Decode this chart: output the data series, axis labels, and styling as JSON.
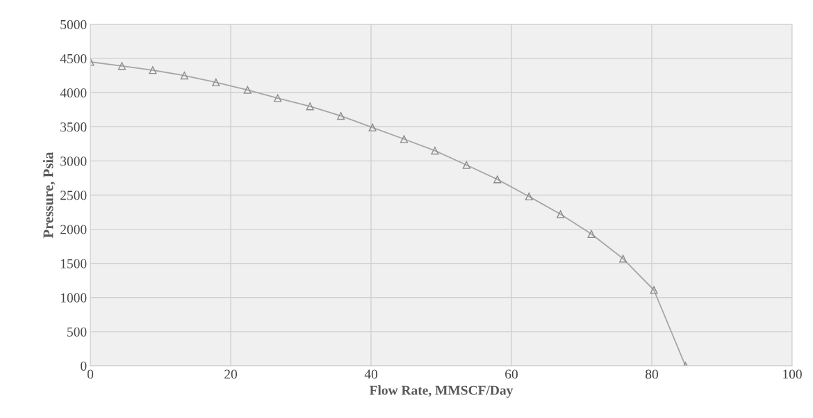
{
  "chart_data": {
    "type": "line",
    "xlabel": "Flow Rate, MMSCF/Day",
    "ylabel": "Pressure, Psia",
    "x": [
      0,
      4.5,
      8.9,
      13.4,
      17.9,
      22.4,
      26.7,
      31.3,
      35.7,
      40.2,
      44.7,
      49.1,
      53.6,
      58.0,
      62.5,
      67.0,
      71.4,
      75.9,
      80.3,
      84.8
    ],
    "series": [
      {
        "color": "#a6a6a6",
        "values": [
          4450,
          4390,
          4330,
          4250,
          4150,
          4040,
          3920,
          3800,
          3660,
          3490,
          3320,
          3150,
          2940,
          2730,
          2480,
          2220,
          1930,
          1570,
          1110,
          0
        ]
      }
    ],
    "xlim": [
      0,
      100
    ],
    "xticks": [
      0,
      20,
      40,
      60,
      80,
      100
    ],
    "ylim": [
      0,
      5000
    ],
    "yticks": [
      0,
      500,
      1000,
      1500,
      2000,
      2500,
      3000,
      3500,
      4000,
      4500,
      5000
    ],
    "grid": true,
    "marker": "triangle",
    "line_style": "solid",
    "legend": false
  }
}
